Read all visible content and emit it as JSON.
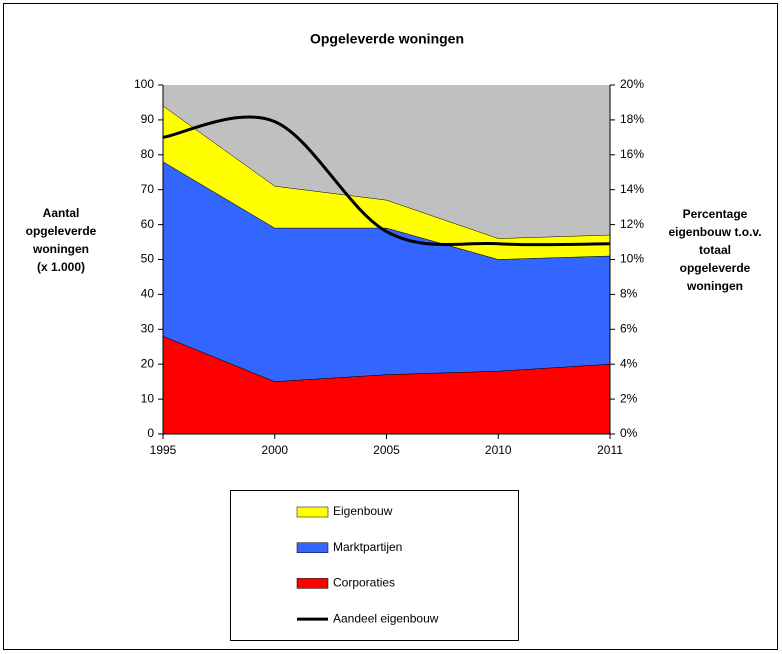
{
  "chart_data": {
    "type": "stacked_area",
    "title": "Opgeleverde woningen",
    "y_label": [
      "Aantal",
      "opgeleverde",
      "woningen",
      "(x 1.000)"
    ],
    "y2_label": [
      "Percentage",
      "eigenbouw t.o.v.",
      "totaal",
      "opgeleverde",
      "woningen"
    ],
    "categories": [
      "1995",
      "2000",
      "2005",
      "2010",
      "2011"
    ],
    "series": [
      {
        "name": "Corporaties",
        "color": "#ff0000",
        "values": [
          28,
          15,
          17,
          18,
          20
        ]
      },
      {
        "name": "Marktpartijen",
        "color": "#3366ff",
        "values": [
          50,
          44,
          42,
          32,
          31
        ]
      },
      {
        "name": "Eigenbouw",
        "color": "#ffff00",
        "values": [
          16,
          12,
          8,
          6,
          6
        ]
      },
      {
        "name": "Aandeel eigenbouw",
        "color": "#000000",
        "type": "line",
        "axis": "y2",
        "smooth": true,
        "values": [
          17,
          17.9,
          11.6,
          10.9,
          10.9
        ]
      }
    ],
    "plot_color": "#c0c0c0",
    "ylim": [
      0,
      100
    ],
    "yticks": [
      0,
      10,
      20,
      30,
      40,
      50,
      60,
      70,
      80,
      90,
      100
    ],
    "y2lim": [
      0,
      20
    ],
    "y2ticks": [
      {
        "value": 0,
        "label": "0%"
      },
      {
        "value": 2,
        "label": "2%"
      },
      {
        "value": 4,
        "label": "4%"
      },
      {
        "value": 6,
        "label": "6%"
      },
      {
        "value": 8,
        "label": "8%"
      },
      {
        "value": 10,
        "label": "10%"
      },
      {
        "value": 12,
        "label": "12%"
      },
      {
        "value": 14,
        "label": "14%"
      },
      {
        "value": 16,
        "label": "16%"
      },
      {
        "value": 18,
        "label": "18%"
      },
      {
        "value": 20,
        "label": "20%"
      }
    ],
    "legend": "bottom"
  }
}
